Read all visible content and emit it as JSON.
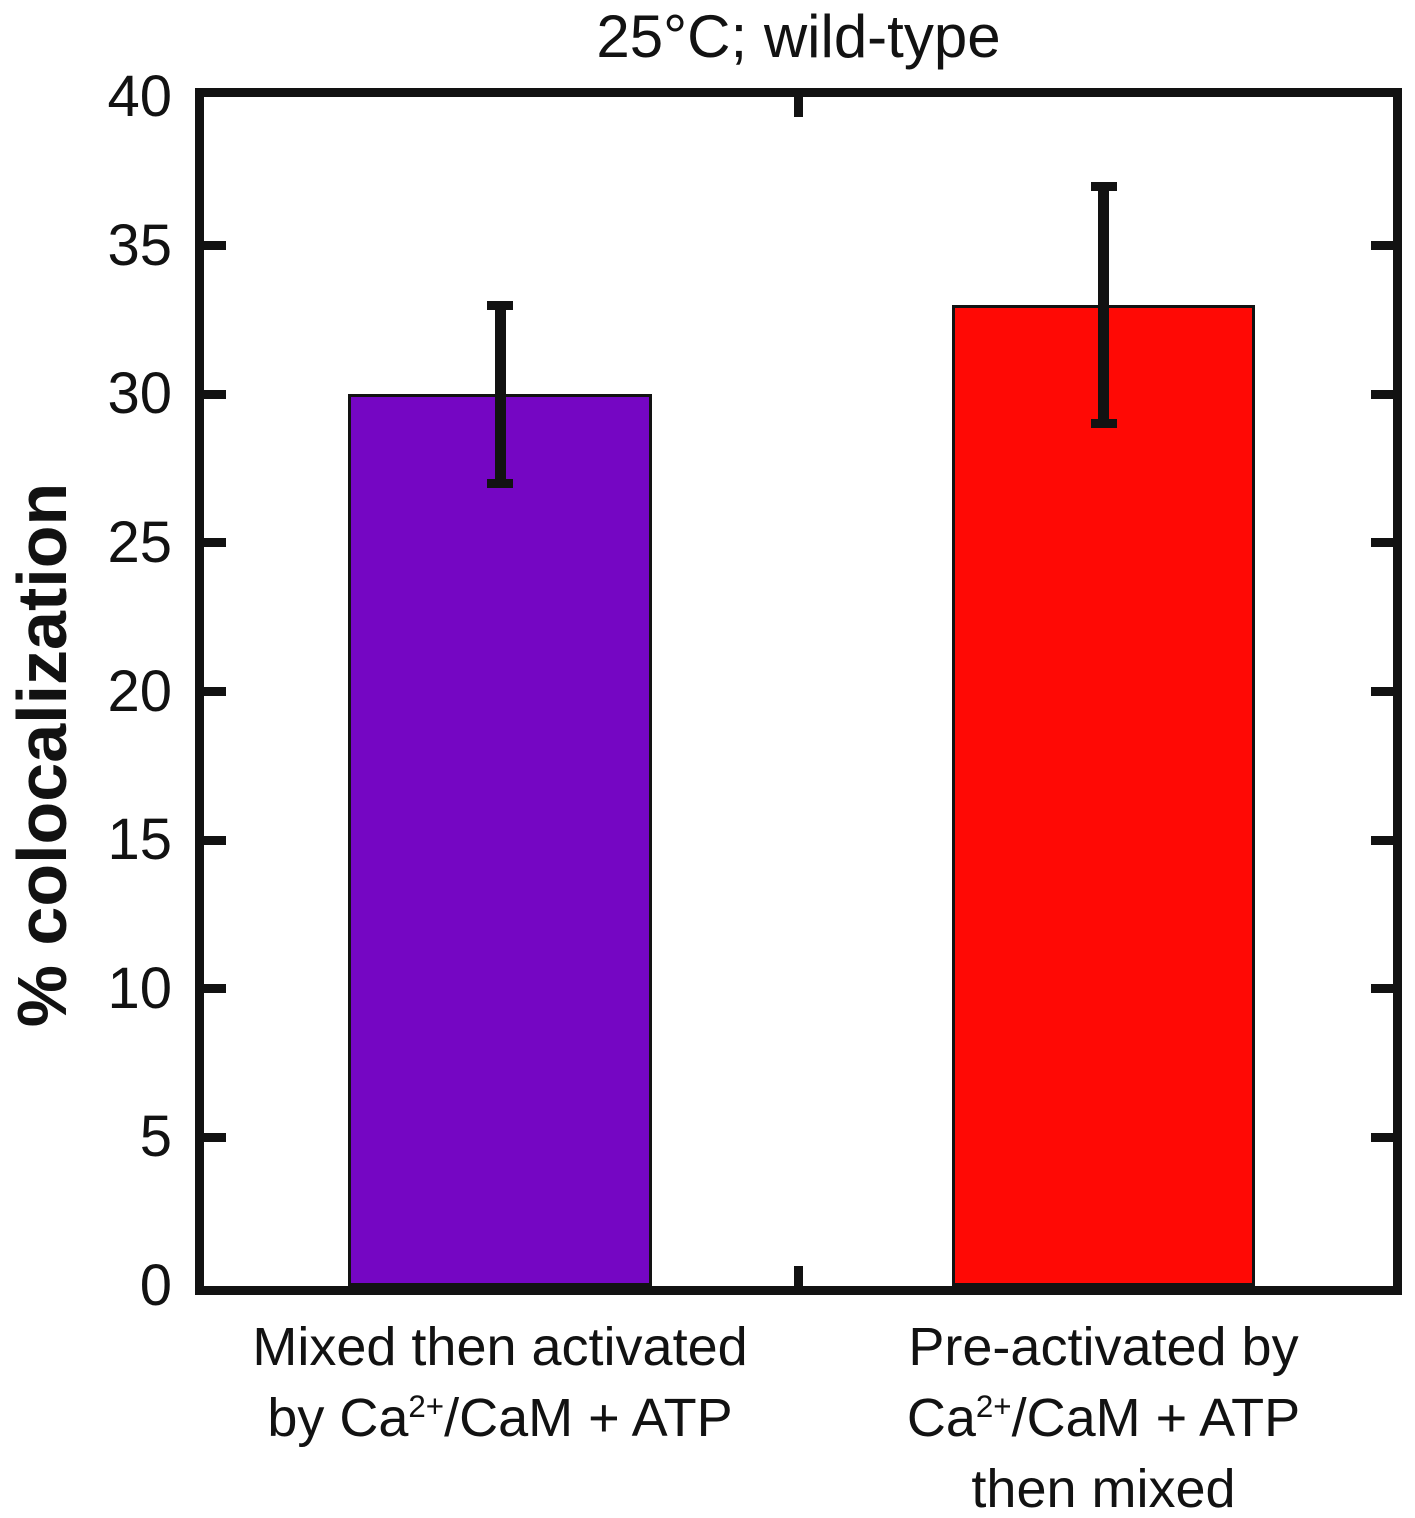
{
  "figure": {
    "background_color": "#ffffff",
    "axis_color": "#121212",
    "text_color": "#121212"
  },
  "chart_data": {
    "type": "bar",
    "title": "25°C; wild-type",
    "xlabel": "",
    "ylabel": "% colocalization",
    "ylim": [
      0,
      40
    ],
    "yticks": [
      0,
      5,
      10,
      15,
      20,
      25,
      30,
      35,
      40
    ],
    "grid": false,
    "legend": "none",
    "categories": [
      "Mixed then activated by Ca2+/CaM + ATP",
      "Pre-activated by Ca2+/CaM + ATP then mixed"
    ],
    "category_label_lines": [
      [
        "Mixed then activated",
        "by Ca{2+}/CaM + ATP"
      ],
      [
        "Pre-activated by",
        "Ca{2+}/CaM + ATP",
        "then mixed"
      ]
    ],
    "values": [
      30,
      33
    ],
    "errors": [
      {
        "low": 27,
        "high": 33
      },
      {
        "low": 29,
        "high": 37
      }
    ],
    "bar_colors": [
      "#7506C3",
      "#FF0905"
    ],
    "bar_edge_color": "#121212",
    "error_bar_color": "#121212",
    "tick_style": "inward, mirrored left/right, center tick top/bottom"
  }
}
